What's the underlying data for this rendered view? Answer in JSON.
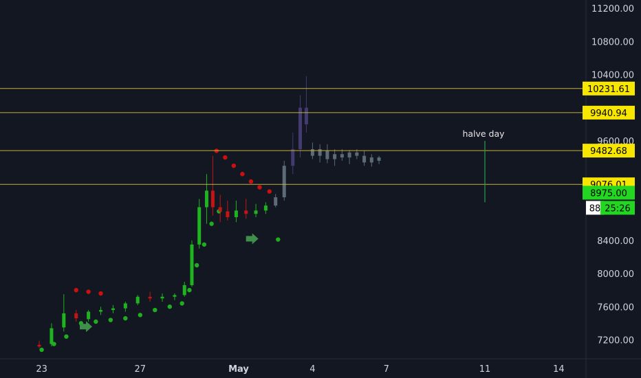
{
  "chart_data": {
    "type": "candlestick",
    "ylim": [
      7000,
      11300
    ],
    "y_ticks": [
      7200,
      7600,
      8000,
      8400,
      8800,
      9200,
      9600,
      10000,
      10400,
      10800,
      11200
    ],
    "y_tick_labels": [
      "7200.00",
      "7600.00",
      "8000.00",
      "8400.00",
      "",
      "",
      "9600.00",
      "",
      "10400.00",
      "10800.00",
      "11200.00"
    ],
    "x_day_range": [
      -9,
      14.5
    ],
    "x_ticks": [
      {
        "day": -8,
        "label": "23",
        "bold": false
      },
      {
        "day": -4,
        "label": "27",
        "bold": false
      },
      {
        "day": 0,
        "label": "May",
        "bold": true
      },
      {
        "day": 3,
        "label": "4",
        "bold": false
      },
      {
        "day": 6,
        "label": "7",
        "bold": false
      },
      {
        "day": 10,
        "label": "11",
        "bold": false
      },
      {
        "day": 13,
        "label": "14",
        "bold": false
      }
    ],
    "grid": false,
    "horizontal_levels": [
      10231.61,
      9940.94,
      9482.68,
      9076.01
    ],
    "level_labels": [
      "10231.61",
      "9940.94",
      "9482.68",
      "9076.01"
    ],
    "current_price": {
      "value": 8975.0,
      "label": "8975.00",
      "countdown": "25:26",
      "hidden_label_fragment": "88"
    },
    "annotation": {
      "text": "halve day",
      "day": 10,
      "y_top": 9600,
      "y_bottom": 8860
    },
    "candles": [
      {
        "day": -8.1,
        "o": 7140,
        "h": 7190,
        "l": 7100,
        "c": 7120,
        "style": "hist"
      },
      {
        "day": -7.6,
        "o": 7150,
        "h": 7400,
        "l": 7120,
        "c": 7340,
        "style": "hist"
      },
      {
        "day": -7.1,
        "o": 7350,
        "h": 7750,
        "l": 7300,
        "c": 7520,
        "style": "hist"
      },
      {
        "day": -6.6,
        "o": 7520,
        "h": 7560,
        "l": 7420,
        "c": 7460,
        "style": "hist"
      },
      {
        "day": -6.1,
        "o": 7450,
        "h": 7560,
        "l": 7420,
        "c": 7540,
        "style": "hist"
      },
      {
        "day": -5.6,
        "o": 7540,
        "h": 7600,
        "l": 7500,
        "c": 7560,
        "style": "hist"
      },
      {
        "day": -5.1,
        "o": 7560,
        "h": 7620,
        "l": 7520,
        "c": 7580,
        "style": "hist"
      },
      {
        "day": -4.6,
        "o": 7580,
        "h": 7660,
        "l": 7540,
        "c": 7640,
        "style": "hist"
      },
      {
        "day": -4.1,
        "o": 7640,
        "h": 7740,
        "l": 7620,
        "c": 7720,
        "style": "hist"
      },
      {
        "day": -3.6,
        "o": 7720,
        "h": 7780,
        "l": 7660,
        "c": 7700,
        "style": "hist"
      },
      {
        "day": -3.1,
        "o": 7700,
        "h": 7760,
        "l": 7660,
        "c": 7720,
        "style": "hist"
      },
      {
        "day": -2.6,
        "o": 7720,
        "h": 7760,
        "l": 7680,
        "c": 7740,
        "style": "hist"
      },
      {
        "day": -2.2,
        "o": 7740,
        "h": 7900,
        "l": 7720,
        "c": 7860,
        "style": "hist"
      },
      {
        "day": -1.9,
        "o": 7860,
        "h": 8400,
        "l": 7840,
        "c": 8350,
        "style": "hist"
      },
      {
        "day": -1.6,
        "o": 8350,
        "h": 8900,
        "l": 8300,
        "c": 8800,
        "style": "hist"
      },
      {
        "day": -1.3,
        "o": 8800,
        "h": 9200,
        "l": 8600,
        "c": 9000,
        "style": "hist"
      },
      {
        "day": -1.05,
        "o": 9000,
        "h": 9420,
        "l": 8700,
        "c": 8800,
        "style": "hist"
      },
      {
        "day": -0.75,
        "o": 8800,
        "h": 8950,
        "l": 8620,
        "c": 8750,
        "style": "hist"
      },
      {
        "day": -0.45,
        "o": 8750,
        "h": 8880,
        "l": 8640,
        "c": 8680,
        "style": "hist"
      },
      {
        "day": -0.1,
        "o": 8680,
        "h": 8880,
        "l": 8620,
        "c": 8760,
        "style": "hist"
      },
      {
        "day": 0.3,
        "o": 8760,
        "h": 8900,
        "l": 8660,
        "c": 8720,
        "style": "hist"
      },
      {
        "day": 0.7,
        "o": 8720,
        "h": 8840,
        "l": 8680,
        "c": 8760,
        "style": "hist"
      },
      {
        "day": 1.1,
        "o": 8760,
        "h": 8860,
        "l": 8720,
        "c": 8820,
        "style": "hist"
      },
      {
        "day": 1.5,
        "o": 8820,
        "h": 8960,
        "l": 8800,
        "c": 8920,
        "style": "proj"
      },
      {
        "day": 1.85,
        "o": 8920,
        "h": 9360,
        "l": 8880,
        "c": 9300,
        "style": "proj"
      },
      {
        "day": 2.2,
        "o": 9300,
        "h": 9700,
        "l": 9200,
        "c": 9500,
        "style": "purple"
      },
      {
        "day": 2.5,
        "o": 9500,
        "h": 10150,
        "l": 9400,
        "c": 10000,
        "style": "purple"
      },
      {
        "day": 2.75,
        "o": 10000,
        "h": 10380,
        "l": 9700,
        "c": 9800,
        "style": "purple"
      },
      {
        "day": 3.0,
        "o": 9500,
        "h": 9580,
        "l": 9380,
        "c": 9420,
        "style": "proj"
      },
      {
        "day": 3.3,
        "o": 9420,
        "h": 9560,
        "l": 9340,
        "c": 9500,
        "style": "proj"
      },
      {
        "day": 3.6,
        "o": 9480,
        "h": 9560,
        "l": 9330,
        "c": 9380,
        "style": "proj"
      },
      {
        "day": 3.9,
        "o": 9380,
        "h": 9500,
        "l": 9300,
        "c": 9440,
        "style": "proj"
      },
      {
        "day": 4.2,
        "o": 9440,
        "h": 9500,
        "l": 9360,
        "c": 9400,
        "style": "proj"
      },
      {
        "day": 4.5,
        "o": 9400,
        "h": 9490,
        "l": 9320,
        "c": 9460,
        "style": "proj"
      },
      {
        "day": 4.8,
        "o": 9460,
        "h": 9500,
        "l": 9380,
        "c": 9420,
        "style": "proj"
      },
      {
        "day": 5.1,
        "o": 9420,
        "h": 9480,
        "l": 9300,
        "c": 9340,
        "style": "proj"
      },
      {
        "day": 5.4,
        "o": 9340,
        "h": 9440,
        "l": 9290,
        "c": 9400,
        "style": "proj"
      },
      {
        "day": 5.7,
        "o": 9400,
        "h": 9420,
        "l": 9320,
        "c": 9360,
        "style": "proj"
      }
    ],
    "psar_bull": [
      {
        "day": -8.0,
        "y": 7080
      },
      {
        "day": -7.5,
        "y": 7150
      },
      {
        "day": -7.0,
        "y": 7240
      },
      {
        "day": -6.4,
        "y": 7400
      },
      {
        "day": -5.8,
        "y": 7420
      },
      {
        "day": -5.2,
        "y": 7440
      },
      {
        "day": -4.6,
        "y": 7460
      },
      {
        "day": -4.0,
        "y": 7500
      },
      {
        "day": -3.4,
        "y": 7560
      },
      {
        "day": -2.8,
        "y": 7600
      },
      {
        "day": -2.3,
        "y": 7640
      },
      {
        "day": -2.0,
        "y": 7800
      },
      {
        "day": -1.7,
        "y": 8100
      },
      {
        "day": -1.4,
        "y": 8350
      },
      {
        "day": -1.1,
        "y": 8600
      },
      {
        "day": -0.8,
        "y": 8750
      },
      {
        "day": 1.6,
        "y": 8410
      }
    ],
    "psar_bear": [
      {
        "day": -6.6,
        "y": 7800
      },
      {
        "day": -6.1,
        "y": 7780
      },
      {
        "day": -5.6,
        "y": 7760
      },
      {
        "day": -0.9,
        "y": 9480
      },
      {
        "day": -0.55,
        "y": 9400
      },
      {
        "day": -0.2,
        "y": 9300
      },
      {
        "day": 0.15,
        "y": 9200
      },
      {
        "day": 0.5,
        "y": 9110
      },
      {
        "day": 0.85,
        "y": 9040
      },
      {
        "day": 1.25,
        "y": 8990
      }
    ],
    "arrows": [
      {
        "day": -6.2,
        "y": 7360
      },
      {
        "day": 0.55,
        "y": 8420
      }
    ],
    "colors": {
      "background": "#131722",
      "axis_text": "#d1d4dc",
      "level_line": "#c8b13a",
      "level_label_bg": "#f7e600",
      "bull": "#1fb31f",
      "bear": "#c41515",
      "psar_bull": "#1fae1f",
      "psar_bear": "#cc1010",
      "projection": "#5d6b78",
      "purple": "#433a70",
      "annotation_line": "#2e9e4a",
      "current_label_bg": "#22d622"
    }
  }
}
